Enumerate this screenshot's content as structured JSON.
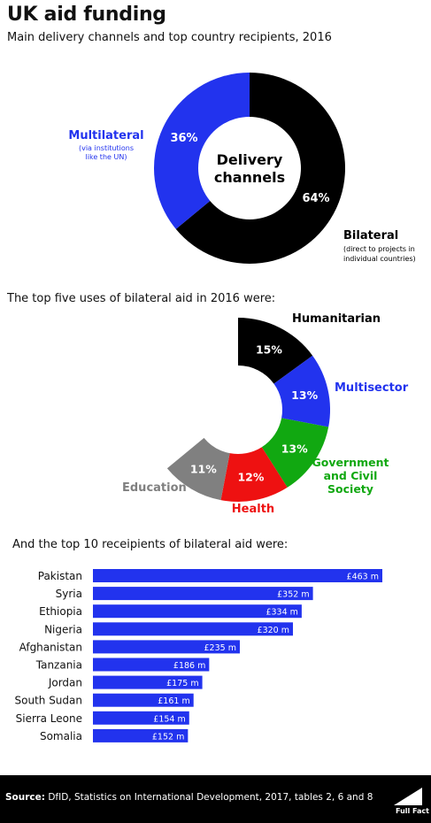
{
  "title": "UK aid funding",
  "subtitle": "Main delivery channels and top country recipients, 2016",
  "section2_heading": "The top five uses of bilateral aid in 2016 were:",
  "section3_heading": "And the top 10 receipients of bilateral aid were:",
  "footer": {
    "source_label": "Source:",
    "source_text": " DfID, Statistics on International Development, 2017, tables 2, 6 and 8",
    "logo_text": "Full Fact"
  },
  "colors": {
    "blue": "#2233ee",
    "black": "#000000",
    "green": "#11a811",
    "red": "#ee1111",
    "gray": "#808080"
  },
  "chart_data": [
    {
      "type": "pie",
      "center_label": [
        "Delivery",
        "channels"
      ],
      "slices": [
        {
          "name": "Bilateral",
          "value": 64,
          "label": "64%",
          "note": [
            "(direct to projects in",
            "individual countries)"
          ],
          "color": "#000000"
        },
        {
          "name": "Multilateral",
          "value": 36,
          "label": "36%",
          "note": [
            "(via institutions",
            "like the UN)"
          ],
          "color": "#2233ee"
        }
      ]
    },
    {
      "type": "pie",
      "slices": [
        {
          "name": "Humanitarian",
          "value": 15,
          "label": "15%",
          "color": "#000000"
        },
        {
          "name": "Multisector",
          "value": 13,
          "label": "13%",
          "color": "#2233ee"
        },
        {
          "name": "Government and Civil Society",
          "name_lines": [
            "Government",
            "and Civil",
            "Society"
          ],
          "value": 13,
          "label": "13%",
          "color": "#11a811"
        },
        {
          "name": "Health",
          "value": 12,
          "label": "12%",
          "color": "#ee1111"
        },
        {
          "name": "Education",
          "value": 11,
          "label": "11%",
          "color": "#808080"
        }
      ]
    },
    {
      "type": "bar",
      "orientation": "horizontal",
      "categories": [
        "Pakistan",
        "Syria",
        "Ethiopia",
        "Nigeria",
        "Afghanistan",
        "Tanzania",
        "Jordan",
        "South Sudan",
        "Sierra Leone",
        "Somalia"
      ],
      "values": [
        463,
        352,
        334,
        320,
        235,
        186,
        175,
        161,
        154,
        152
      ],
      "value_labels": [
        "£463 m",
        "£352 m",
        "£334 m",
        "£320 m",
        "£235 m",
        "£186 m",
        "£175 m",
        "£161 m",
        "£154 m",
        "£152 m"
      ],
      "color": "#2233ee"
    }
  ]
}
